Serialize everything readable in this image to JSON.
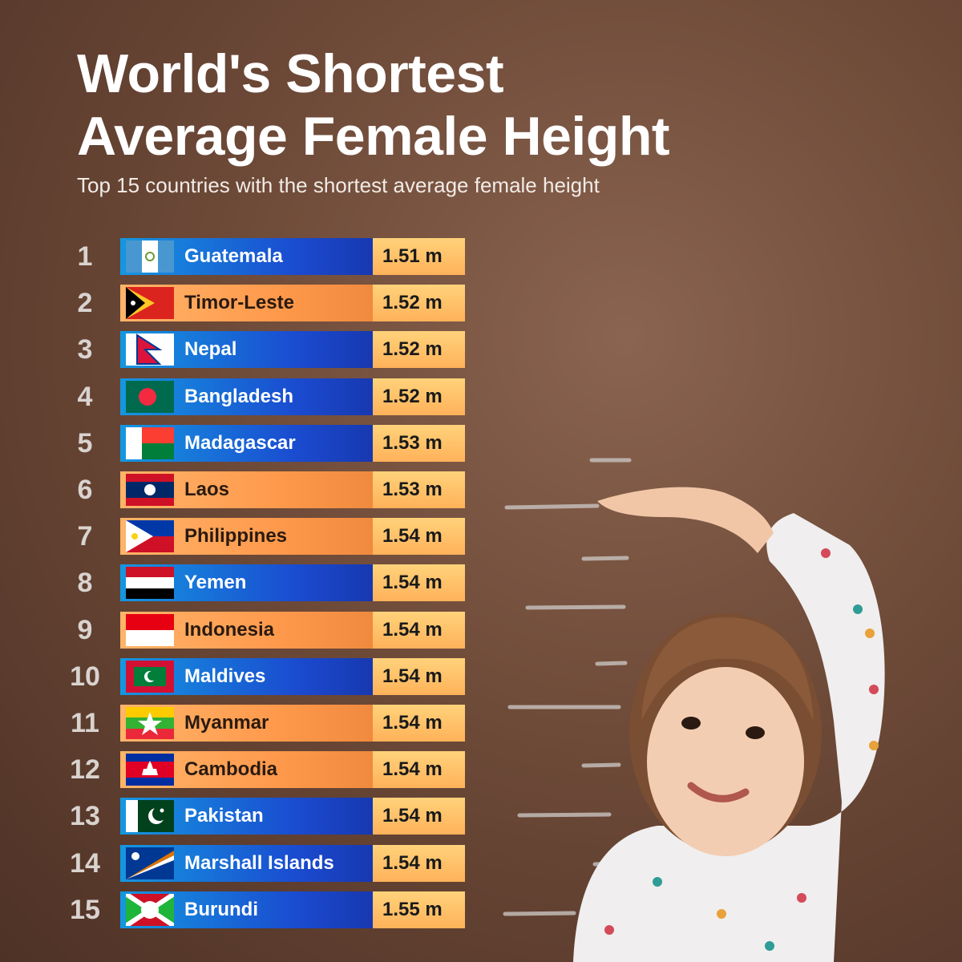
{
  "header": {
    "title": [
      "World's Shortest",
      "Average Female Height"
    ],
    "subtitle": "Top 15 countries with the shortest average female height"
  },
  "table": {
    "rows": [
      [
        "1",
        "Guatemala",
        "1.51 m"
      ],
      [
        "2",
        "Timor-Leste",
        "1.52 m"
      ],
      [
        "3",
        "Nepal",
        "1.52 m"
      ],
      [
        "4",
        "Bangladesh",
        "1.52 m"
      ],
      [
        "5",
        "Madagascar",
        "1.53 m"
      ],
      [
        "6",
        "Laos",
        "1.53 m"
      ],
      [
        "7",
        "Philippines",
        "1.54 m"
      ],
      [
        "8",
        "Yemen",
        "1.54 m"
      ],
      [
        "9",
        "Indonesia",
        "1.54 m"
      ],
      [
        "10",
        "Maldives",
        "1.54 m"
      ],
      [
        "11",
        "Myanmar",
        "1.54 m"
      ],
      [
        "12",
        "Cambodia",
        "1.54 m"
      ],
      [
        "13",
        "Pakistan",
        "1.54 m"
      ],
      [
        "14",
        "Marshall Islands",
        "1.54 m"
      ],
      [
        "15",
        "Burundi",
        "1.55 m"
      ]
    ]
  }
}
